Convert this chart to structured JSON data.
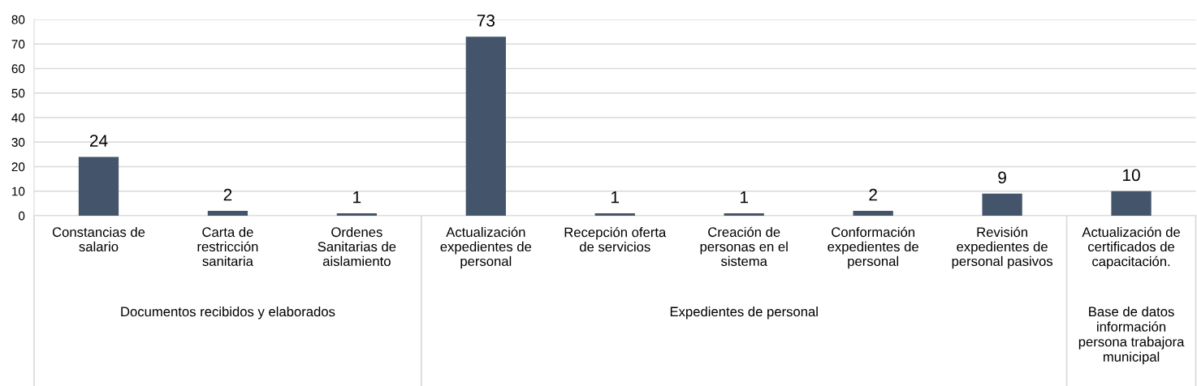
{
  "chart_data": {
    "type": "bar",
    "categories": [
      "Constancias de\nsalario",
      "Carta de\nrestricción\nsanitaria",
      "Ordenes\nSanitarias de\naislamiento",
      "Actualización\nexpedientes de\npersonal",
      "Recepción oferta\nde servicios",
      "Creación de\npersonas en el\nsistema",
      "Conformación\nexpedientes de\npersonal",
      "Revisión\nexpedientes de\npersonal pasivos",
      "Actualización de\ncertificados de\ncapacitación."
    ],
    "values": [
      24,
      2,
      1,
      73,
      1,
      1,
      2,
      9,
      10
    ],
    "color": "#44546a",
    "data_labels": true,
    "ylim": [
      0,
      80
    ],
    "yticks": [
      0,
      10,
      20,
      30,
      40,
      50,
      60,
      70,
      80
    ],
    "grid": "y",
    "annotations": [
      "Documentos recibidos y elaborados",
      "Expedientes de personal",
      "Base de datos\ninformación\npersona trabajora\nmunicipal"
    ]
  }
}
